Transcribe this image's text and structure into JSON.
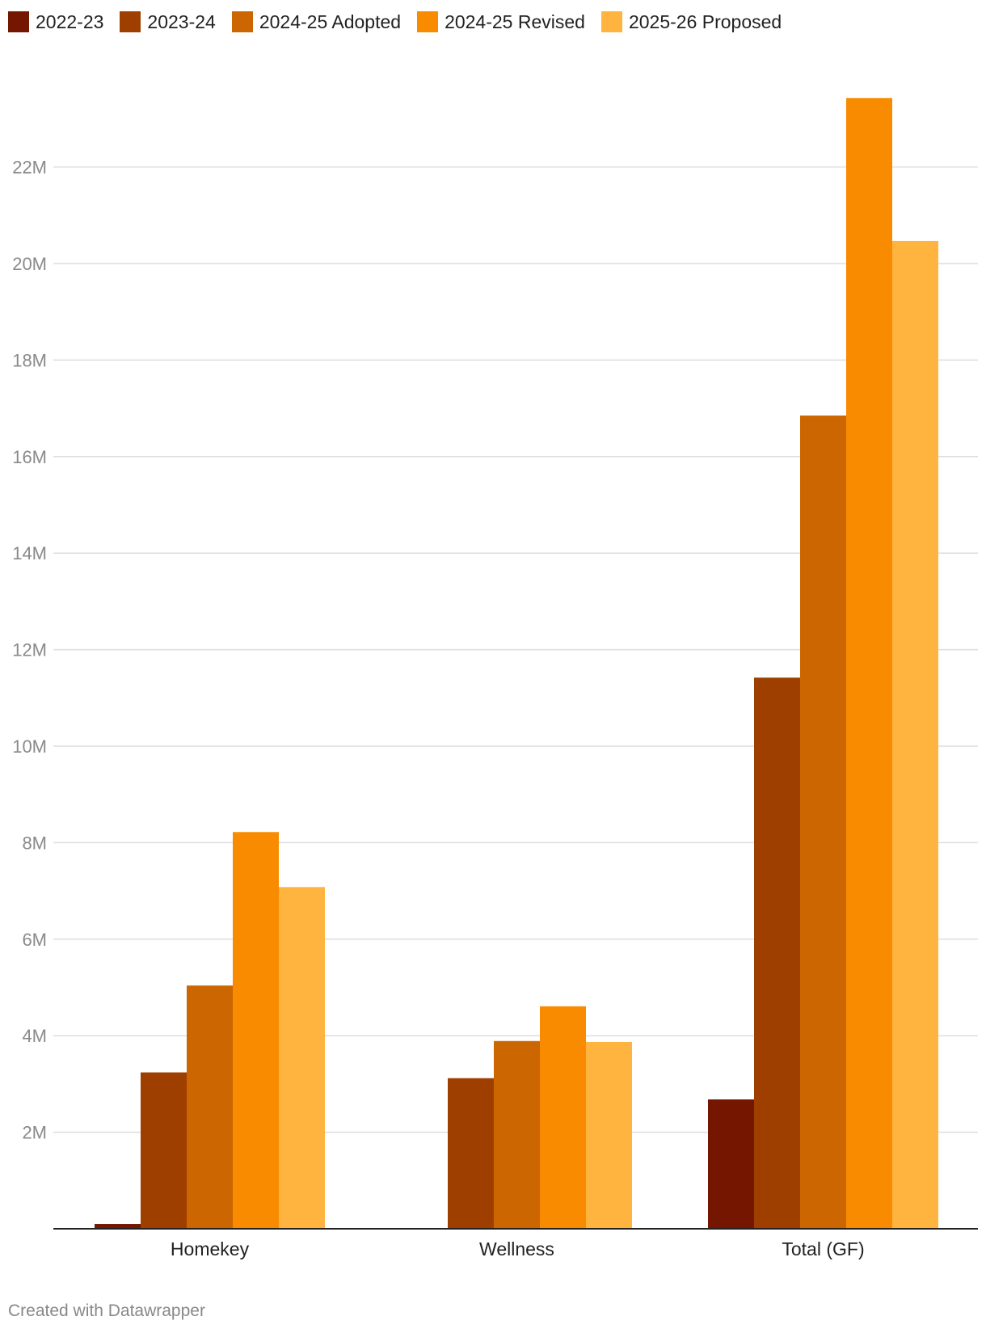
{
  "chart_data": {
    "type": "bar",
    "categories": [
      "Homekey",
      "Wellness",
      "Total (GF)"
    ],
    "series": [
      {
        "name": "2022-23",
        "color": "#751700",
        "values": [
          0.1,
          0,
          2.68
        ]
      },
      {
        "name": "2023-24",
        "color": "#9e3f00",
        "values": [
          3.24,
          3.12,
          11.42
        ]
      },
      {
        "name": "2024-25 Adopted",
        "color": "#cc6600",
        "values": [
          5.04,
          3.89,
          16.85
        ]
      },
      {
        "name": "2024-25 Revised",
        "color": "#f98b00",
        "values": [
          8.22,
          4.61,
          23.43
        ]
      },
      {
        "name": "2025-26 Proposed",
        "color": "#ffb43f",
        "values": [
          7.08,
          3.87,
          20.47
        ]
      }
    ],
    "yticks": [
      {
        "value": 2,
        "label": "2M"
      },
      {
        "value": 4,
        "label": "4M"
      },
      {
        "value": 6,
        "label": "6M"
      },
      {
        "value": 8,
        "label": "8M"
      },
      {
        "value": 10,
        "label": "10M"
      },
      {
        "value": 12,
        "label": "12M"
      },
      {
        "value": 14,
        "label": "14M"
      },
      {
        "value": 16,
        "label": "16M"
      },
      {
        "value": 18,
        "label": "18M"
      },
      {
        "value": 20,
        "label": "20M"
      },
      {
        "value": 22,
        "label": "22M"
      }
    ],
    "ylim": [
      0,
      23.5
    ],
    "grid": true,
    "legend_position": "top-left",
    "xlabel": "",
    "ylabel": "",
    "title": ""
  },
  "footer": {
    "credit": "Created with Datawrapper"
  }
}
